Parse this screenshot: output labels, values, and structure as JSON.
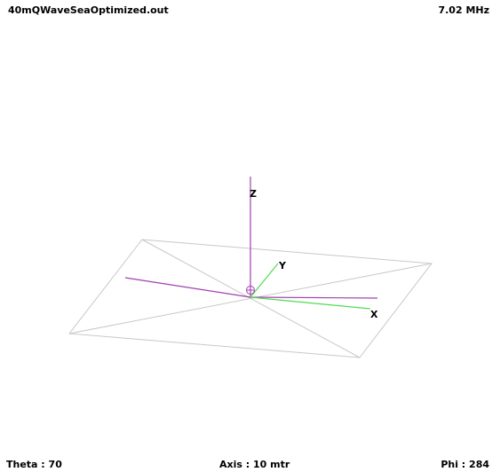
{
  "header": {
    "file_name": "40mQWaveSeaOptimized.out",
    "frequency": "7.02 MHz"
  },
  "footer": {
    "theta": "Theta : 70",
    "axis": "Axis : 10 mtr",
    "phi": "Phi : 284"
  },
  "axes": {
    "x_label": "X",
    "y_label": "Y",
    "z_label": "Z"
  },
  "colors": {
    "ground_plane": "#c8c8c8",
    "antenna_wire": "#a040b0",
    "axis": "#50dc50",
    "feed_point": "#a040b0"
  }
}
